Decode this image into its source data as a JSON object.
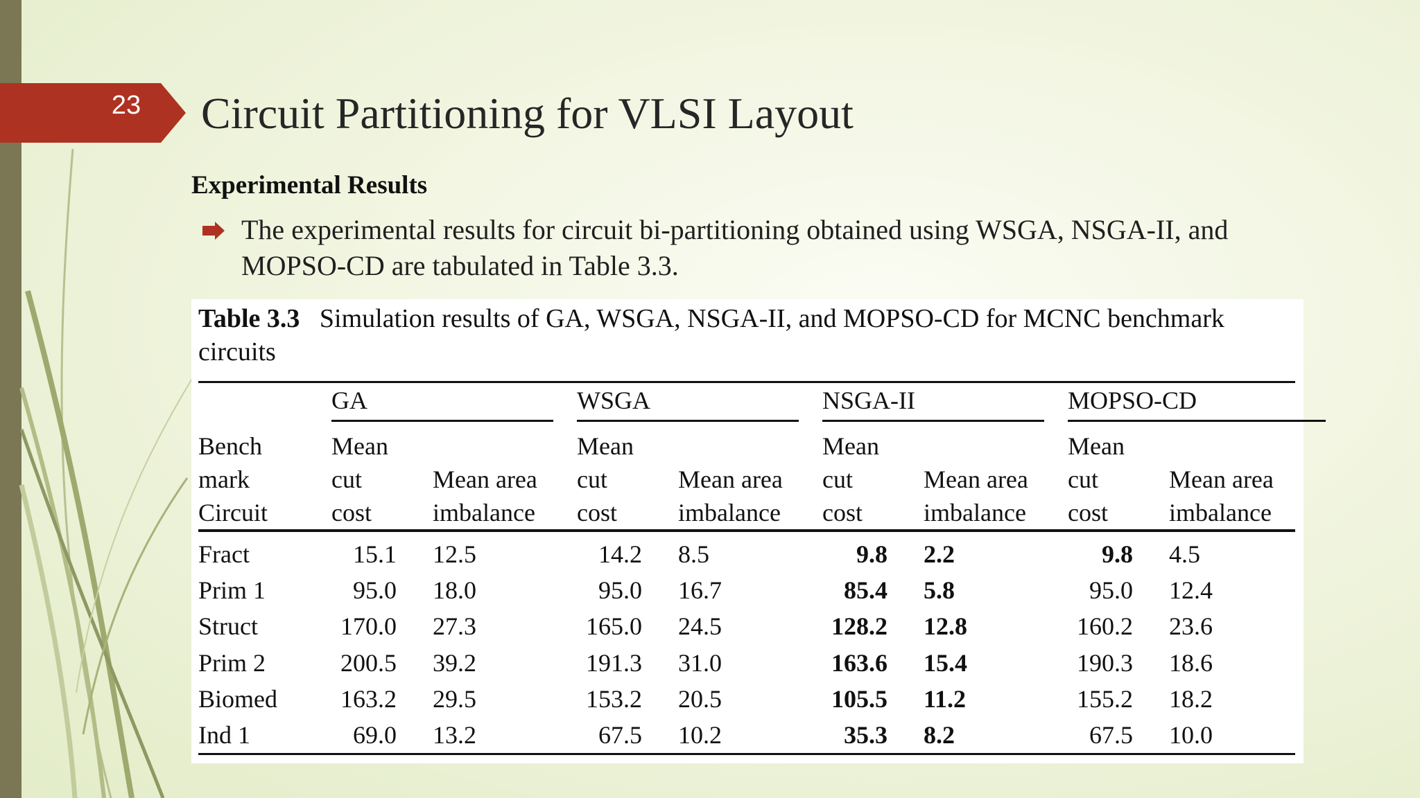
{
  "slide": {
    "number": "23",
    "title": "Circuit Partitioning for VLSI Layout",
    "section_heading": "Experimental Results",
    "bullet": "The experimental results for circuit bi-partitioning obtained using WSGA, NSGA-II, and MOPSO-CD are tabulated in Table 3.3."
  },
  "table": {
    "caption_label": "Table 3.3",
    "caption_text": "Simulation results of GA, WSGA, NSGA-II, and MOPSO-CD for MCNC benchmark circuits",
    "groups": [
      "GA",
      "WSGA",
      "NSGA-II",
      "MOPSO-CD"
    ],
    "header_first": [
      "Bench",
      "mark",
      "Circuit"
    ],
    "header_cut": [
      "Mean",
      "cut",
      "cost"
    ],
    "header_area": [
      "Mean area",
      "imbalance"
    ],
    "rows": [
      {
        "circuit": "Fract",
        "values": [
          "15.1",
          "12.5",
          "14.2",
          "8.5",
          "9.8",
          "2.2",
          "9.8",
          "4.5"
        ]
      },
      {
        "circuit": "Prim 1",
        "values": [
          "95.0",
          "18.0",
          "95.0",
          "16.7",
          "85.4",
          "5.8",
          "95.0",
          "12.4"
        ]
      },
      {
        "circuit": "Struct",
        "values": [
          "170.0",
          "27.3",
          "165.0",
          "24.5",
          "128.2",
          "12.8",
          "160.2",
          "23.6"
        ]
      },
      {
        "circuit": "Prim 2",
        "values": [
          "200.5",
          "39.2",
          "191.3",
          "31.0",
          "163.6",
          "15.4",
          "190.3",
          "18.6"
        ]
      },
      {
        "circuit": "Biomed",
        "values": [
          "163.2",
          "29.5",
          "153.2",
          "20.5",
          "105.5",
          "11.2",
          "155.2",
          "18.2"
        ]
      },
      {
        "circuit": "Ind 1",
        "values": [
          "69.0",
          "13.2",
          "67.5",
          "10.2",
          "35.3",
          "8.2",
          "67.5",
          "10.0"
        ]
      }
    ],
    "bold": [
      [
        false,
        false,
        false,
        false,
        true,
        true,
        true,
        false
      ],
      [
        false,
        false,
        false,
        false,
        true,
        true,
        false,
        false
      ],
      [
        false,
        false,
        false,
        false,
        true,
        true,
        false,
        false
      ],
      [
        false,
        false,
        false,
        false,
        true,
        true,
        false,
        false
      ],
      [
        false,
        false,
        false,
        false,
        true,
        true,
        false,
        false
      ],
      [
        false,
        false,
        false,
        false,
        true,
        true,
        false,
        false
      ]
    ]
  },
  "colors": {
    "accent_red": "#ae3221",
    "left_bar": "#7b7654",
    "background": "#eef3dc"
  }
}
